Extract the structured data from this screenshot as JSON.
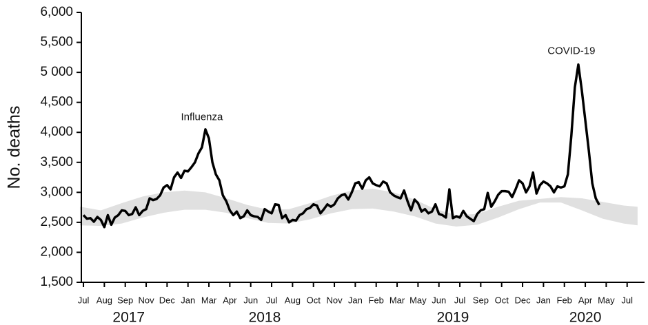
{
  "chart_data": {
    "type": "line",
    "y_label": "No. deaths",
    "x": [
      0,
      1,
      2,
      3,
      4,
      5,
      6,
      7,
      8,
      9,
      10,
      11,
      12,
      13,
      14,
      15,
      16,
      17,
      18,
      19,
      20,
      21,
      22,
      23,
      24,
      25,
      26,
      27,
      28,
      29,
      30,
      31,
      32,
      33,
      34,
      35,
      36,
      37,
      38,
      39,
      40,
      41,
      42,
      43,
      44,
      45,
      46,
      47,
      48,
      49,
      50,
      51,
      52,
      53,
      54,
      55,
      56,
      57,
      58,
      59,
      60,
      61,
      62,
      63,
      64,
      65,
      66,
      67,
      68,
      69,
      70,
      71,
      72,
      73,
      74,
      75,
      76,
      77,
      78,
      79,
      80,
      81,
      82,
      83,
      84,
      85,
      86,
      87,
      88,
      89,
      90,
      91,
      92,
      93,
      94,
      95,
      96,
      97,
      98,
      99,
      100,
      101,
      102,
      103,
      104,
      105,
      106,
      107,
      108,
      109,
      110,
      111,
      112,
      113,
      114,
      115,
      116,
      117,
      118,
      119,
      120,
      121,
      122,
      123,
      124,
      125,
      126,
      127,
      128,
      129,
      130,
      131,
      132,
      133,
      134,
      135,
      136,
      137,
      138,
      139,
      140,
      141,
      142,
      143,
      144,
      145,
      146,
      147,
      148
    ],
    "series": [
      {
        "color": "#000000",
        "values": [
          2620,
          2560,
          2570,
          2510,
          2590,
          2540,
          2420,
          2620,
          2460,
          2580,
          2620,
          2700,
          2690,
          2620,
          2640,
          2750,
          2620,
          2690,
          2720,
          2900,
          2870,
          2890,
          2950,
          3080,
          3120,
          3050,
          3250,
          3330,
          3240,
          3360,
          3350,
          3420,
          3500,
          3650,
          3750,
          4050,
          3900,
          3500,
          3300,
          3200,
          2950,
          2850,
          2700,
          2620,
          2680,
          2570,
          2600,
          2700,
          2620,
          2600,
          2590,
          2540,
          2720,
          2680,
          2650,
          2800,
          2790,
          2570,
          2620,
          2500,
          2540,
          2530,
          2620,
          2650,
          2720,
          2740,
          2800,
          2780,
          2650,
          2720,
          2800,
          2760,
          2800,
          2900,
          2950,
          2970,
          2880,
          3000,
          3150,
          3170,
          3060,
          3200,
          3250,
          3150,
          3120,
          3100,
          3180,
          3150,
          3000,
          2950,
          2920,
          2900,
          3030,
          2850,
          2700,
          2880,
          2820,
          2680,
          2720,
          2650,
          2680,
          2800,
          2640,
          2620,
          2580,
          3050,
          2570,
          2600,
          2580,
          2690,
          2600,
          2560,
          2520,
          2640,
          2700,
          2720,
          2990,
          2760,
          2850,
          2960,
          3020,
          3020,
          3010,
          2920,
          3050,
          3200,
          3150,
          3000,
          3100,
          3330,
          2980,
          3120,
          3180,
          3150,
          3100,
          3000,
          3100,
          3080,
          3100,
          3300,
          3950,
          4750,
          5130,
          4700,
          4200,
          3700,
          3150,
          2900,
          2790
        ]
      }
    ],
    "band": {
      "color": "#e0e0e0",
      "x": [
        -1,
        5,
        11,
        17,
        23,
        29,
        35,
        41,
        47,
        53,
        59,
        65,
        71,
        77,
        83,
        89,
        95,
        101,
        107,
        113,
        119,
        125,
        131,
        137,
        143,
        149,
        155,
        159
      ],
      "lower": [
        2450,
        2440,
        2480,
        2580,
        2660,
        2710,
        2710,
        2660,
        2570,
        2490,
        2480,
        2550,
        2650,
        2720,
        2730,
        2680,
        2600,
        2480,
        2430,
        2460,
        2580,
        2720,
        2830,
        2830,
        2700,
        2560,
        2480,
        2450
      ],
      "upper": [
        2760,
        2700,
        2820,
        2930,
        3000,
        3030,
        3000,
        2900,
        2790,
        2710,
        2720,
        2820,
        2940,
        3030,
        3060,
        3000,
        2880,
        2720,
        2620,
        2640,
        2760,
        2860,
        2890,
        2920,
        2900,
        2840,
        2780,
        2760
      ]
    },
    "xlim": [
      -0.6,
      161
    ],
    "ylim": [
      1500,
      6000
    ],
    "yticks": [
      {
        "value": 1500,
        "label": "1,500"
      },
      {
        "value": 2000,
        "label": "2,000"
      },
      {
        "value": 2500,
        "label": "2,500"
      },
      {
        "value": 3000,
        "label": "3,000"
      },
      {
        "value": 3500,
        "label": "3,500"
      },
      {
        "value": 4000,
        "label": "4,000"
      },
      {
        "value": 4500,
        "label": "4,500"
      },
      {
        "value": 5000,
        "label": "5 000"
      },
      {
        "value": 5500,
        "label": "5,500"
      },
      {
        "value": 6000,
        "label": "6,000"
      }
    ],
    "xticks": [
      {
        "value": 0,
        "label": "Jul"
      },
      {
        "value": 6,
        "label": "Aug"
      },
      {
        "value": 12,
        "label": "Sep"
      },
      {
        "value": 18,
        "label": "Nov"
      },
      {
        "value": 24,
        "label": "Dec"
      },
      {
        "value": 30,
        "label": "Jan"
      },
      {
        "value": 36,
        "label": "Mar"
      },
      {
        "value": 42,
        "label": "Apr"
      },
      {
        "value": 48,
        "label": "Jun"
      },
      {
        "value": 54,
        "label": "Jul"
      },
      {
        "value": 60,
        "label": "Aug"
      },
      {
        "value": 66,
        "label": "Oct"
      },
      {
        "value": 72,
        "label": "Nov"
      },
      {
        "value": 78,
        "label": "Jan"
      },
      {
        "value": 84,
        "label": "Feb"
      },
      {
        "value": 90,
        "label": "Mar"
      },
      {
        "value": 96,
        "label": "May"
      },
      {
        "value": 102,
        "label": "Jun"
      },
      {
        "value": 108,
        "label": "Jul"
      },
      {
        "value": 114,
        "label": "Sep"
      },
      {
        "value": 120,
        "label": "Oct"
      },
      {
        "value": 126,
        "label": "Dec"
      },
      {
        "value": 132,
        "label": "Jan"
      },
      {
        "value": 138,
        "label": "Feb"
      },
      {
        "value": 144,
        "label": "Apr"
      },
      {
        "value": 150,
        "label": "May"
      },
      {
        "value": 156,
        "label": "Jul"
      }
    ],
    "year_labels": [
      {
        "value": 13,
        "label": "2017"
      },
      {
        "value": 52,
        "label": "2018"
      },
      {
        "value": 106,
        "label": "2019"
      },
      {
        "value": 144,
        "label": "2020"
      }
    ],
    "annotations": [
      {
        "text": "Influenza",
        "x": 34,
        "y": 4250
      },
      {
        "text": "COVID-19",
        "x": 140,
        "y": 5350
      }
    ]
  }
}
